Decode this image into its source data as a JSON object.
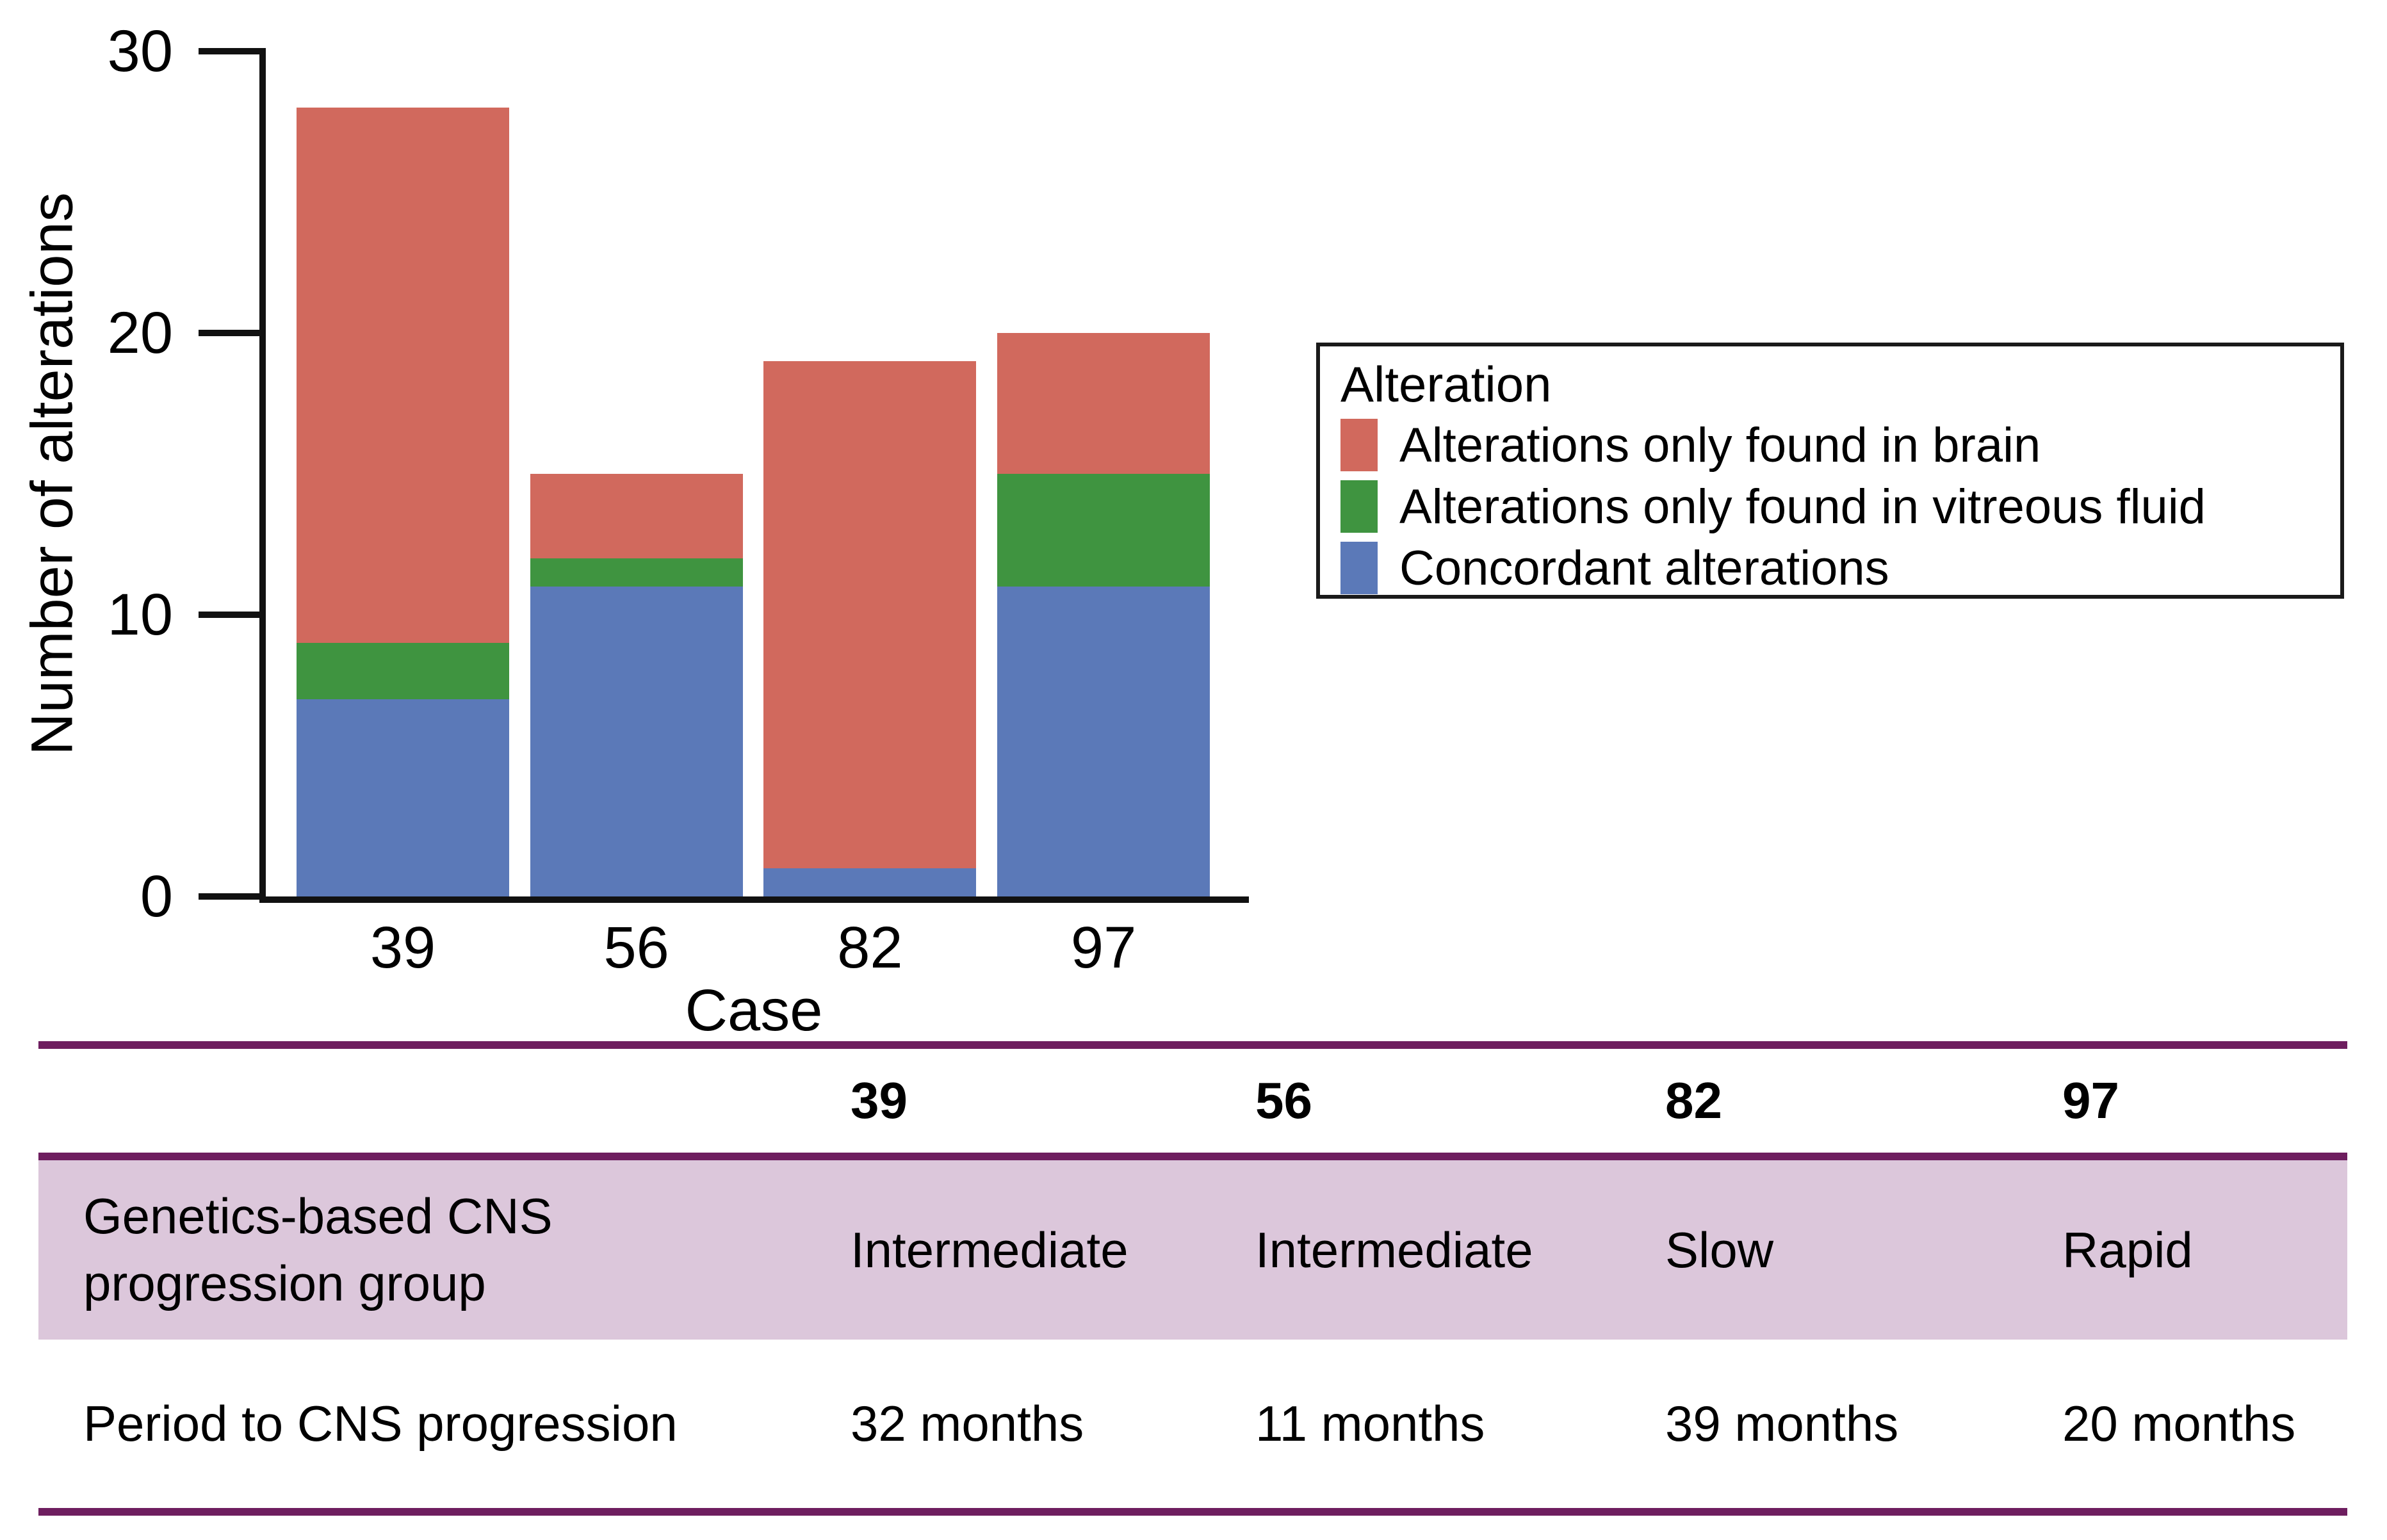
{
  "chart_data": {
    "type": "bar",
    "stacked": true,
    "categories": [
      "39",
      "56",
      "82",
      "97"
    ],
    "series": [
      {
        "name": "Concordant alterations",
        "color": "#5b79b8",
        "values": [
          7,
          11,
          1,
          11
        ]
      },
      {
        "name": "Alterations only found in vitreous fluid",
        "color": "#3f9440",
        "values": [
          2,
          1,
          0,
          4
        ]
      },
      {
        "name": "Alterations only found in brain",
        "color": "#d1695d",
        "values": [
          19,
          3,
          18,
          5
        ]
      }
    ],
    "xlabel": "Case",
    "ylabel": "Number of alterations",
    "ylim": [
      0,
      30
    ],
    "yticks": [
      0,
      10,
      20,
      30
    ],
    "legend_title": "Alteration",
    "legend_position": "right",
    "legend_order": "reversed",
    "grid": false
  },
  "table": {
    "columns": [
      "39",
      "56",
      "82",
      "97"
    ],
    "rows": [
      {
        "label": "Genetics-based CNS\nprogression group",
        "values": [
          "Intermediate",
          "Intermediate",
          "Slow",
          "Rapid"
        ],
        "highlighted": true
      },
      {
        "label": "Period to CNS progression",
        "values": [
          "32 months",
          "11 months",
          "39 months",
          "20 months"
        ],
        "highlighted": false
      }
    ],
    "accent_color": "#6e1e5f",
    "highlight_bg": "#dcc7db"
  }
}
